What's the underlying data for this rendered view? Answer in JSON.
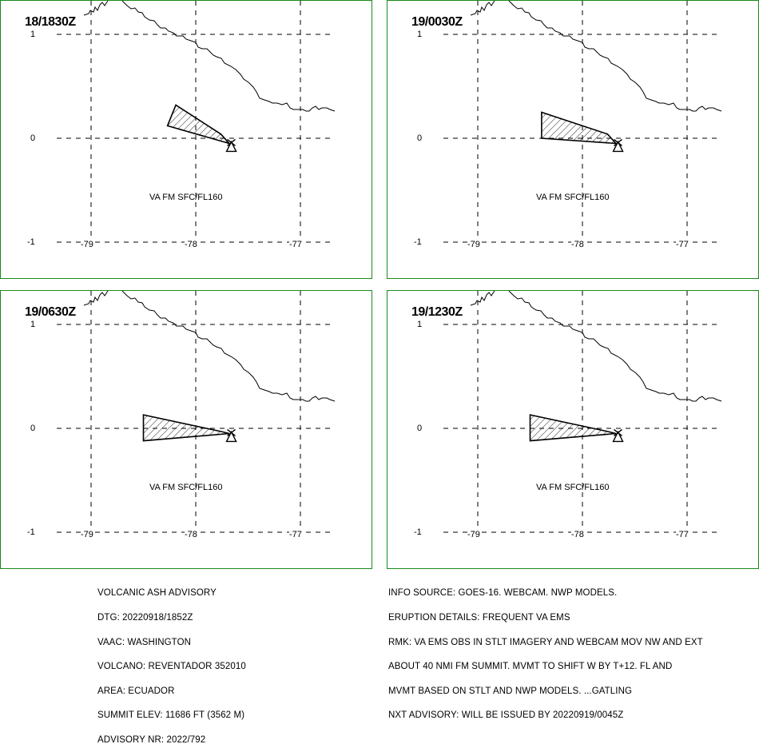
{
  "panels": [
    {
      "time": "18/1830Z",
      "label": "VA FM SFC/FL160",
      "y_ticks": [
        "1",
        "0",
        "-1"
      ],
      "x_ticks": [
        "-79",
        "-78",
        "-77"
      ],
      "ash_polygon_lonlat": [
        [
          -78.19,
          0.32
        ],
        [
          -78.27,
          0.12
        ],
        [
          -77.68,
          -0.05
        ],
        [
          -77.76,
          0.04
        ]
      ]
    },
    {
      "time": "19/0030Z",
      "label": "VA FM SFC/FL160",
      "y_ticks": [
        "1",
        "0",
        "-1"
      ],
      "x_ticks": [
        "-79",
        "-78",
        "-77"
      ],
      "ash_polygon_lonlat": [
        [
          -78.39,
          0.25
        ],
        [
          -78.39,
          0.0
        ],
        [
          -77.68,
          -0.05
        ],
        [
          -77.76,
          0.04
        ]
      ]
    },
    {
      "time": "19/0630Z",
      "label": "VA FM SFC/FL160",
      "y_ticks": [
        "1",
        "0",
        "-1"
      ],
      "x_ticks": [
        "-79",
        "-78",
        "-77"
      ],
      "ash_polygon_lonlat": [
        [
          -78.5,
          0.13
        ],
        [
          -78.5,
          -0.12
        ],
        [
          -77.68,
          -0.05
        ],
        [
          -77.76,
          -0.03
        ]
      ]
    },
    {
      "time": "19/1230Z",
      "label": "VA FM SFC/FL160",
      "y_ticks": [
        "1",
        "0",
        "-1"
      ],
      "x_ticks": [
        "-79",
        "-78",
        "-77"
      ],
      "ash_polygon_lonlat": [
        [
          -78.5,
          0.13
        ],
        [
          -78.5,
          -0.12
        ],
        [
          -77.68,
          -0.05
        ],
        [
          -77.76,
          -0.03
        ]
      ]
    }
  ],
  "volcano_lonlat": [
    -77.66,
    -0.08
  ],
  "colors": {
    "panel_border": "#1a8a1a",
    "grid": "#000000",
    "coast": "#000000"
  },
  "advisory_left": [
    "VOLCANIC ASH ADVISORY",
    "DTG: 20220918/1852Z",
    "VAAC: WASHINGTON",
    "VOLCANO: REVENTADOR 352010",
    "AREA: ECUADOR",
    "SUMMIT ELEV: 11686 FT (3562 M)",
    "ADVISORY NR: 2022/792"
  ],
  "advisory_right": [
    "INFO SOURCE: GOES-16. WEBCAM. NWP MODELS.",
    "ERUPTION DETAILS: FREQUENT VA EMS",
    "RMK: VA EMS OBS IN STLT IMAGERY AND WEBCAM MOV NW AND EXT",
    "ABOUT 40 NMI FM SUMMIT. MVMT TO SHIFT W BY T+12. FL AND",
    "MVMT BASED ON STLT AND NWP MODELS. ...GATLING",
    "NXT ADVISORY: WILL BE ISSUED BY 20220919/0045Z"
  ]
}
